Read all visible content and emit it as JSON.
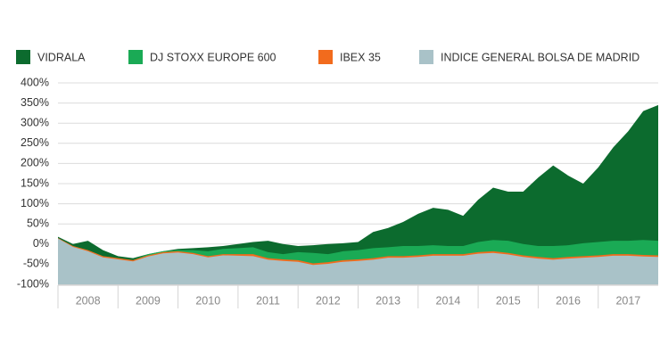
{
  "chart_data": {
    "type": "area",
    "x": [
      2008,
      2008.25,
      2008.5,
      2008.75,
      2009,
      2009.25,
      2009.5,
      2009.75,
      2010,
      2010.25,
      2010.5,
      2010.75,
      2011,
      2011.25,
      2011.5,
      2011.75,
      2012,
      2012.25,
      2012.5,
      2012.75,
      2013,
      2013.25,
      2013.5,
      2013.75,
      2014,
      2014.25,
      2014.5,
      2014.75,
      2015,
      2015.25,
      2015.5,
      2015.75,
      2016,
      2016.25,
      2016.5,
      2016.75,
      2017,
      2017.25,
      2017.5,
      2017.75,
      2018
    ],
    "series": [
      {
        "name": "VIDRALA",
        "color": "#0c6b2e",
        "values": [
          18,
          0,
          8,
          -15,
          -30,
          -35,
          -25,
          -18,
          -12,
          -10,
          -8,
          -5,
          0,
          5,
          8,
          0,
          -5,
          -3,
          0,
          2,
          5,
          30,
          40,
          55,
          75,
          90,
          85,
          70,
          110,
          140,
          130,
          130,
          165,
          195,
          170,
          150,
          190,
          240,
          280,
          330,
          345
        ]
      },
      {
        "name": "DJ STOXX EUROPE 600",
        "color": "#1aaa55",
        "values": [
          15,
          -5,
          -15,
          -30,
          -35,
          -40,
          -25,
          -18,
          -15,
          -15,
          -18,
          -12,
          -10,
          -8,
          -20,
          -25,
          -20,
          -22,
          -25,
          -18,
          -15,
          -10,
          -8,
          -5,
          -5,
          -3,
          -5,
          -5,
          5,
          10,
          8,
          0,
          -5,
          -5,
          -3,
          2,
          5,
          8,
          8,
          10,
          8
        ]
      },
      {
        "name": "IBEX 35",
        "color": "#f26b1d",
        "values": [
          15,
          -5,
          -15,
          -30,
          -35,
          -40,
          -28,
          -20,
          -18,
          -22,
          -30,
          -25,
          -25,
          -25,
          -35,
          -38,
          -40,
          -48,
          -45,
          -40,
          -38,
          -35,
          -30,
          -30,
          -28,
          -25,
          -25,
          -25,
          -20,
          -18,
          -22,
          -28,
          -32,
          -35,
          -32,
          -30,
          -28,
          -25,
          -25,
          -27,
          -28
        ]
      },
      {
        "name": "INDICE GENERAL BOLSA DE MADRID",
        "color": "#a9c2c8",
        "values": [
          14,
          -7,
          -18,
          -33,
          -38,
          -43,
          -31,
          -23,
          -21,
          -25,
          -33,
          -28,
          -29,
          -30,
          -39,
          -42,
          -44,
          -52,
          -49,
          -44,
          -42,
          -39,
          -34,
          -34,
          -32,
          -29,
          -29,
          -29,
          -24,
          -22,
          -26,
          -32,
          -36,
          -39,
          -36,
          -34,
          -32,
          -29,
          -29,
          -31,
          -32
        ]
      }
    ],
    "xlim": [
      2008,
      2018
    ],
    "xticks": [
      {
        "value": 2008.5,
        "label": "2008"
      },
      {
        "value": 2009.5,
        "label": "2009"
      },
      {
        "value": 2010.5,
        "label": "2010"
      },
      {
        "value": 2011.5,
        "label": "2011"
      },
      {
        "value": 2012.5,
        "label": "2012"
      },
      {
        "value": 2013.5,
        "label": "2013"
      },
      {
        "value": 2014.5,
        "label": "2014"
      },
      {
        "value": 2015.5,
        "label": "2015"
      },
      {
        "value": 2016.5,
        "label": "2016"
      },
      {
        "value": 2017.5,
        "label": "2017"
      }
    ],
    "ylim": [
      -100,
      400
    ],
    "yticks": [
      {
        "value": -100,
        "label": "-100%"
      },
      {
        "value": -50,
        "label": "-50%"
      },
      {
        "value": 0,
        "label": "0%"
      },
      {
        "value": 50,
        "label": "50%"
      },
      {
        "value": 100,
        "label": "100%"
      },
      {
        "value": 150,
        "label": "150%"
      },
      {
        "value": 200,
        "label": "200%"
      },
      {
        "value": 250,
        "label": "250%"
      },
      {
        "value": 300,
        "label": "300%"
      },
      {
        "value": 350,
        "label": "350%"
      },
      {
        "value": 400,
        "label": "400%"
      }
    ],
    "grid": true
  }
}
